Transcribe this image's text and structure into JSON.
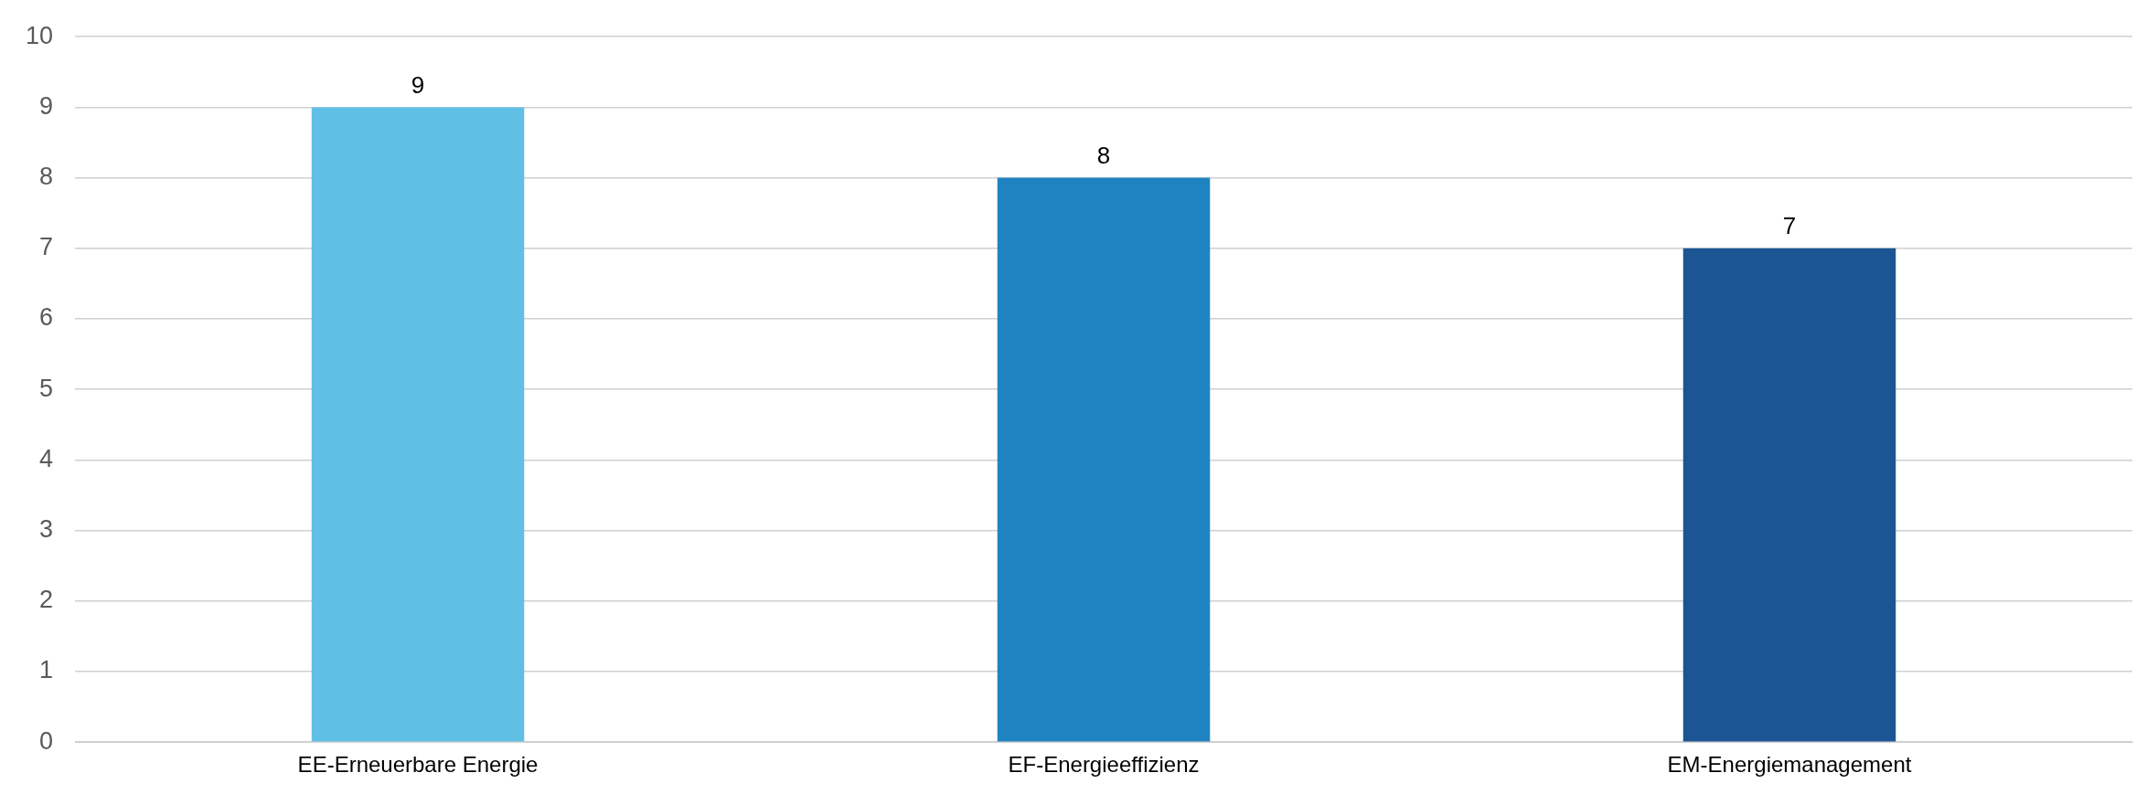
{
  "chart_data": {
    "type": "bar",
    "categories": [
      "EE-Erneuerbare Energie",
      "EF-Energieeffizienz",
      "EM-Energiemanagement"
    ],
    "values": [
      9,
      8,
      7
    ],
    "colors": [
      "#5fbfe5",
      "#1f83c1",
      "#1b5593"
    ],
    "ylim": [
      0,
      10
    ],
    "yticks": [
      0,
      1,
      2,
      3,
      4,
      5,
      6,
      7,
      8,
      9,
      10
    ],
    "grid": "y",
    "data_labels": true,
    "legend": false
  }
}
